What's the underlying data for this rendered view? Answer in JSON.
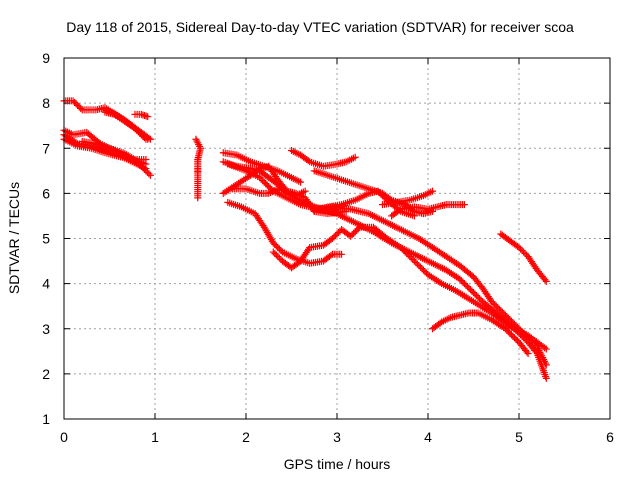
{
  "chart_data": {
    "type": "scatter",
    "title": "Day 118 of 2015, Sidereal Day-to-day VTEC variation (SDTVAR) for receiver scoa",
    "xlabel": "GPS time / hours",
    "ylabel": "SDTVAR / TECUs",
    "xlim": [
      0,
      6
    ],
    "ylim": [
      1,
      9
    ],
    "xticks": [
      "0",
      "1",
      "2",
      "3",
      "4",
      "5",
      "6"
    ],
    "yticks": [
      "1",
      "2",
      "3",
      "4",
      "5",
      "6",
      "7",
      "8",
      "9"
    ],
    "grid": true,
    "marker": "plus",
    "color": "#ff0000",
    "series": [
      {
        "points": [
          [
            0,
            8.05
          ],
          [
            0.1,
            8.05
          ],
          [
            0.2,
            7.85
          ],
          [
            0.35,
            7.85
          ],
          [
            0.45,
            7.9
          ],
          [
            0.6,
            7.7
          ],
          [
            0.75,
            7.5
          ],
          [
            0.9,
            7.2
          ]
        ]
      },
      {
        "points": [
          [
            0.45,
            7.85
          ],
          [
            0.55,
            7.78
          ],
          [
            0.65,
            7.65
          ],
          [
            0.75,
            7.5
          ],
          [
            0.85,
            7.35
          ],
          [
            0.95,
            7.2
          ]
        ]
      },
      {
        "points": [
          [
            0.45,
            7.8
          ],
          [
            0.55,
            7.75
          ],
          [
            0.65,
            7.62
          ],
          [
            0.75,
            7.48
          ],
          [
            0.85,
            7.33
          ],
          [
            0.92,
            7.2
          ]
        ]
      },
      {
        "points": [
          [
            0.78,
            7.75
          ],
          [
            0.85,
            7.75
          ],
          [
            0.92,
            7.7
          ]
        ]
      },
      {
        "points": [
          [
            0,
            7.4
          ],
          [
            0.1,
            7.3
          ],
          [
            0.25,
            7.35
          ],
          [
            0.4,
            7.1
          ],
          [
            0.55,
            6.95
          ],
          [
            0.7,
            6.8
          ],
          [
            0.85,
            6.6
          ],
          [
            0.95,
            6.4
          ]
        ]
      },
      {
        "points": [
          [
            0,
            7.2
          ],
          [
            0.15,
            7.05
          ],
          [
            0.3,
            7.0
          ],
          [
            0.45,
            6.9
          ],
          [
            0.6,
            6.82
          ],
          [
            0.75,
            6.75
          ],
          [
            0.9,
            6.65
          ]
        ]
      },
      {
        "points": [
          [
            0,
            7.3
          ],
          [
            0.15,
            7.1
          ],
          [
            0.3,
            7.05
          ],
          [
            0.45,
            6.95
          ],
          [
            0.6,
            6.85
          ],
          [
            0.75,
            6.7
          ],
          [
            0.9,
            6.55
          ]
        ]
      },
      {
        "points": [
          [
            0.2,
            7.15
          ],
          [
            0.35,
            7.1
          ],
          [
            0.5,
            7.0
          ],
          [
            0.65,
            6.9
          ],
          [
            0.78,
            6.75
          ],
          [
            0.9,
            6.75
          ]
        ]
      },
      {
        "points": [
          [
            1.45,
            7.2
          ],
          [
            1.5,
            7.0
          ],
          [
            1.47,
            6.75
          ],
          [
            1.47,
            6.55
          ],
          [
            1.47,
            6.45
          ],
          [
            1.47,
            5.9
          ]
        ]
      },
      {
        "points": [
          [
            1.75,
            6.9
          ],
          [
            1.9,
            6.85
          ],
          [
            2.05,
            6.7
          ],
          [
            2.2,
            6.6
          ],
          [
            2.35,
            6.5
          ],
          [
            2.5,
            6.35
          ],
          [
            2.6,
            6.25
          ]
        ]
      },
      {
        "points": [
          [
            1.75,
            6.7
          ],
          [
            1.9,
            6.6
          ],
          [
            2.05,
            6.55
          ],
          [
            2.15,
            6.5
          ],
          [
            2.25,
            6.35
          ],
          [
            2.35,
            6.2
          ],
          [
            2.45,
            6.0
          ],
          [
            2.55,
            5.9
          ],
          [
            2.65,
            5.8
          ],
          [
            2.75,
            5.7
          ],
          [
            2.85,
            5.65
          ],
          [
            3.0,
            5.65
          ]
        ]
      },
      {
        "points": [
          [
            1.75,
            6.0
          ],
          [
            1.9,
            6.2
          ],
          [
            2.05,
            6.4
          ],
          [
            2.15,
            6.55
          ],
          [
            2.25,
            6.6
          ],
          [
            2.35,
            6.3
          ],
          [
            2.45,
            6.05
          ],
          [
            2.55,
            6.0
          ],
          [
            2.65,
            5.9
          ],
          [
            2.75,
            5.6
          ],
          [
            2.9,
            5.55
          ],
          [
            3.1,
            5.6
          ]
        ]
      },
      {
        "points": [
          [
            1.85,
            6.1
          ],
          [
            2.0,
            6.1
          ],
          [
            2.15,
            6.0
          ],
          [
            2.25,
            6.0
          ],
          [
            2.35,
            6.1
          ],
          [
            2.45,
            6.05
          ],
          [
            2.55,
            5.95
          ],
          [
            2.65,
            6.05
          ]
        ]
      },
      {
        "points": [
          [
            2.5,
            6.95
          ],
          [
            2.6,
            6.85
          ],
          [
            2.7,
            6.7
          ],
          [
            2.85,
            6.6
          ],
          [
            3.0,
            6.65
          ],
          [
            3.1,
            6.7
          ],
          [
            3.2,
            6.8
          ]
        ]
      },
      {
        "points": [
          [
            2.75,
            6.5
          ],
          [
            2.9,
            6.4
          ],
          [
            3.05,
            6.3
          ],
          [
            3.2,
            6.2
          ],
          [
            3.35,
            6.1
          ],
          [
            3.5,
            6.0
          ],
          [
            3.6,
            5.85
          ],
          [
            3.75,
            5.75
          ],
          [
            3.85,
            5.6
          ],
          [
            3.95,
            5.55
          ],
          [
            4.05,
            5.6
          ]
        ]
      },
      {
        "points": [
          [
            2.75,
            5.6
          ],
          [
            2.9,
            5.7
          ],
          [
            3.05,
            5.75
          ],
          [
            3.2,
            5.85
          ],
          [
            3.35,
            6.0
          ],
          [
            3.45,
            6.05
          ],
          [
            3.55,
            5.85
          ],
          [
            3.7,
            5.6
          ],
          [
            3.85,
            5.5
          ]
        ]
      },
      {
        "points": [
          [
            3.5,
            5.75
          ],
          [
            3.65,
            5.8
          ],
          [
            3.8,
            5.85
          ],
          [
            3.95,
            5.95
          ],
          [
            4.05,
            6.05
          ]
        ]
      },
      {
        "points": [
          [
            3.6,
            5.5
          ],
          [
            3.7,
            5.65
          ],
          [
            3.85,
            5.7
          ],
          [
            4.0,
            5.65
          ],
          [
            4.1,
            5.7
          ],
          [
            4.2,
            5.75
          ],
          [
            4.3,
            5.75
          ],
          [
            4.4,
            5.75
          ]
        ]
      },
      {
        "points": [
          [
            1.8,
            6.65
          ],
          [
            2.0,
            6.5
          ],
          [
            2.15,
            6.35
          ],
          [
            2.3,
            6.05
          ],
          [
            2.45,
            5.9
          ],
          [
            2.6,
            5.75
          ],
          [
            2.8,
            5.65
          ],
          [
            3.0,
            5.55
          ],
          [
            3.2,
            5.35
          ],
          [
            3.4,
            5.15
          ],
          [
            3.6,
            4.9
          ],
          [
            3.8,
            4.7
          ],
          [
            4.0,
            4.5
          ],
          [
            4.2,
            4.3
          ],
          [
            4.35,
            4.1
          ],
          [
            4.5,
            3.8
          ],
          [
            4.6,
            3.6
          ],
          [
            4.75,
            3.35
          ],
          [
            4.9,
            3.1
          ],
          [
            5.0,
            2.9
          ],
          [
            5.1,
            2.7
          ],
          [
            5.2,
            2.45
          ],
          [
            5.3,
            1.9
          ]
        ]
      },
      {
        "points": [
          [
            2.75,
            5.65
          ],
          [
            2.95,
            5.7
          ],
          [
            3.15,
            5.65
          ],
          [
            3.35,
            5.55
          ],
          [
            3.55,
            5.35
          ],
          [
            3.75,
            5.15
          ],
          [
            3.9,
            5.0
          ],
          [
            4.05,
            4.8
          ],
          [
            4.2,
            4.6
          ],
          [
            4.35,
            4.4
          ],
          [
            4.5,
            4.15
          ],
          [
            4.6,
            3.9
          ],
          [
            4.7,
            3.6
          ],
          [
            4.8,
            3.4
          ],
          [
            4.9,
            3.2
          ],
          [
            5.0,
            3.0
          ],
          [
            5.1,
            2.8
          ],
          [
            5.2,
            2.6
          ],
          [
            5.3,
            2.2
          ]
        ]
      },
      {
        "points": [
          [
            1.8,
            5.8
          ],
          [
            1.95,
            5.7
          ],
          [
            2.1,
            5.55
          ],
          [
            2.2,
            5.25
          ],
          [
            2.3,
            4.9
          ],
          [
            2.4,
            4.7
          ],
          [
            2.55,
            4.55
          ],
          [
            2.7,
            4.45
          ],
          [
            2.85,
            4.5
          ],
          [
            2.95,
            4.65
          ],
          [
            3.05,
            4.65
          ]
        ]
      },
      {
        "points": [
          [
            2.3,
            4.7
          ],
          [
            2.4,
            4.5
          ],
          [
            2.5,
            4.35
          ],
          [
            2.6,
            4.5
          ],
          [
            2.7,
            4.8
          ],
          [
            2.85,
            4.85
          ],
          [
            2.95,
            5.0
          ],
          [
            3.05,
            5.2
          ],
          [
            3.15,
            5.05
          ],
          [
            3.25,
            5.25
          ],
          [
            3.4,
            5.25
          ],
          [
            3.55,
            5.0
          ],
          [
            3.7,
            4.8
          ],
          [
            3.85,
            4.5
          ],
          [
            4.0,
            4.2
          ],
          [
            4.15,
            4.0
          ],
          [
            4.3,
            3.85
          ],
          [
            4.5,
            3.6
          ],
          [
            4.7,
            3.35
          ],
          [
            4.9,
            3.05
          ],
          [
            5.1,
            2.85
          ],
          [
            5.3,
            2.55
          ]
        ]
      },
      {
        "points": [
          [
            4.05,
            3.0
          ],
          [
            4.15,
            3.15
          ],
          [
            4.25,
            3.25
          ],
          [
            4.35,
            3.3
          ],
          [
            4.45,
            3.35
          ],
          [
            4.55,
            3.35
          ],
          [
            4.7,
            3.2
          ],
          [
            4.85,
            3.0
          ],
          [
            5.0,
            2.7
          ],
          [
            5.1,
            2.45
          ]
        ]
      },
      {
        "points": [
          [
            4.8,
            5.1
          ],
          [
            4.9,
            4.95
          ],
          [
            5.0,
            4.8
          ],
          [
            5.1,
            4.6
          ],
          [
            5.2,
            4.3
          ],
          [
            5.3,
            4.05
          ]
        ]
      }
    ]
  }
}
